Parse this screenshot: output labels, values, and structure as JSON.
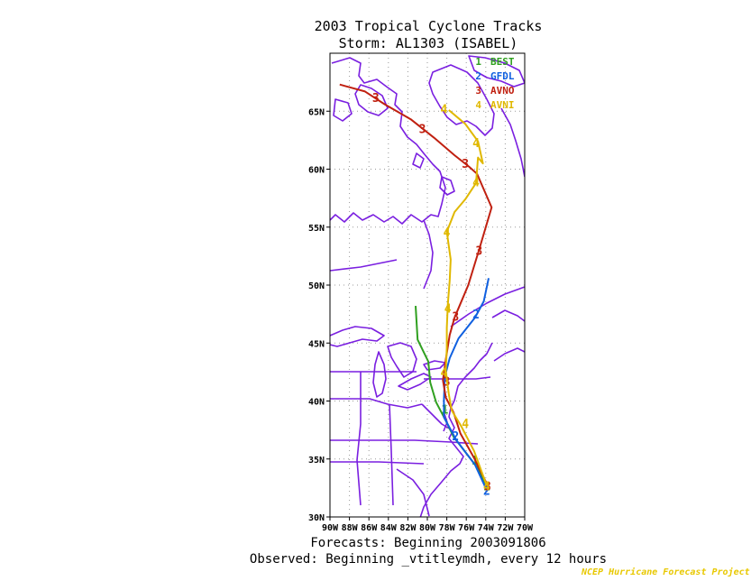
{
  "header": {
    "title_line1": "2003 Tropical Cyclone Tracks",
    "title_line2": "Storm: AL1303 (ISABEL)"
  },
  "footer": {
    "forecasts": "Forecasts: Beginning 2003091806",
    "observed": "Observed: Beginning _vtitleymdh, every 12 hours",
    "credit": "NCEP Hurricane Forecast Project"
  },
  "colors": {
    "map": "#7a1fe0",
    "grid": "#999999",
    "BEST": "#30a020",
    "GFDL": "#1060e0",
    "AVNO": "#c02010",
    "AVNI": "#e0b800"
  },
  "chart_data": {
    "type": "line",
    "title": "2003 Tropical Cyclone Tracks",
    "subtitle": "Storm: AL1303 (ISABEL)",
    "xlim": [
      -90,
      -70
    ],
    "ylim": [
      30,
      70
    ],
    "x_ticks": [
      -90,
      -88,
      -86,
      -84,
      -82,
      -80,
      -78,
      -76,
      -74,
      -72,
      -70
    ],
    "x_tick_labels": [
      "90W",
      "88W",
      "86W",
      "84W",
      "82W",
      "80W",
      "78W",
      "76W",
      "74W",
      "72W",
      "70W"
    ],
    "y_ticks": [
      30,
      35,
      40,
      45,
      50,
      55,
      60,
      65
    ],
    "y_tick_labels": [
      "30N",
      "35N",
      "40N",
      "45N",
      "50N",
      "55N",
      "60N",
      "65N"
    ],
    "grid": true,
    "legend_position": "top-right",
    "legend": [
      {
        "num": "1",
        "name": "BEST"
      },
      {
        "num": "2",
        "name": "GFDL"
      },
      {
        "num": "3",
        "name": "AVNO"
      },
      {
        "num": "4",
        "name": "AVNI"
      }
    ],
    "series": [
      {
        "name": "BEST",
        "num": "1",
        "points": [
          [
            -73.9,
            32.7
          ],
          [
            -74.9,
            34.3
          ],
          [
            -76.1,
            35.6
          ],
          [
            -77.3,
            36.9
          ],
          [
            -78.1,
            38.3
          ],
          [
            -79.1,
            39.9
          ],
          [
            -79.7,
            41.6
          ],
          [
            -79.9,
            43.4
          ],
          [
            -81.0,
            45.3
          ],
          [
            -81.2,
            48.2
          ]
        ],
        "markers": [
          [
            -73.9,
            32.7
          ],
          [
            -75.1,
            34.9
          ],
          [
            -78.2,
            39.3
          ]
        ]
      },
      {
        "name": "GFDL",
        "num": "2",
        "points": [
          [
            -73.9,
            32.3
          ],
          [
            -75.1,
            34.5
          ],
          [
            -77.0,
            36.6
          ],
          [
            -78.3,
            38.6
          ],
          [
            -78.3,
            40.1
          ],
          [
            -78.2,
            42.1
          ],
          [
            -77.7,
            43.7
          ],
          [
            -76.8,
            45.4
          ],
          [
            -75.1,
            47.2
          ],
          [
            -74.2,
            48.6
          ],
          [
            -73.7,
            50.6
          ]
        ],
        "markers": [
          [
            -73.9,
            32.3
          ],
          [
            -77.1,
            37.0
          ],
          [
            -75.0,
            47.5
          ]
        ]
      },
      {
        "name": "AVNO",
        "num": "3",
        "points": [
          [
            -73.8,
            32.7
          ],
          [
            -75.2,
            35.1
          ],
          [
            -76.6,
            37.2
          ],
          [
            -77.3,
            39.0
          ],
          [
            -78.1,
            40.3
          ],
          [
            -78.4,
            41.8
          ],
          [
            -78.1,
            43.6
          ],
          [
            -77.7,
            45.7
          ],
          [
            -77.2,
            47.2
          ],
          [
            -75.8,
            50.0
          ],
          [
            -74.7,
            53.0
          ],
          [
            -73.4,
            56.7
          ],
          [
            -74.9,
            59.6
          ],
          [
            -75.7,
            60.2
          ],
          [
            -77.2,
            61.2
          ],
          [
            -79.3,
            62.7
          ],
          [
            -81.7,
            64.3
          ],
          [
            -84.4,
            65.6
          ],
          [
            -86.4,
            66.7
          ],
          [
            -89.0,
            67.3
          ]
        ],
        "markers": [
          [
            -73.8,
            32.7
          ],
          [
            -78.0,
            41.7
          ],
          [
            -77.1,
            47.3
          ],
          [
            -74.7,
            53.0
          ],
          [
            -76.1,
            60.5
          ],
          [
            -80.5,
            63.5
          ],
          [
            -85.3,
            66.2
          ]
        ]
      },
      {
        "name": "AVNI",
        "num": "4",
        "points": [
          [
            -73.9,
            32.7
          ],
          [
            -75.2,
            35.7
          ],
          [
            -76.5,
            37.8
          ],
          [
            -77.5,
            39.2
          ],
          [
            -77.8,
            40.6
          ],
          [
            -78.1,
            42.6
          ],
          [
            -78.0,
            44.6
          ],
          [
            -78.0,
            46.3
          ],
          [
            -77.9,
            48.3
          ],
          [
            -77.7,
            50.4
          ],
          [
            -77.6,
            52.2
          ],
          [
            -78.0,
            54.6
          ],
          [
            -77.2,
            56.3
          ],
          [
            -76.1,
            57.4
          ],
          [
            -75.0,
            58.8
          ],
          [
            -74.8,
            61.0
          ],
          [
            -74.3,
            60.5
          ],
          [
            -74.8,
            62.4
          ],
          [
            -76.1,
            63.9
          ],
          [
            -77.8,
            65.1
          ]
        ],
        "markers": [
          [
            -73.9,
            32.7
          ],
          [
            -76.1,
            38.1
          ],
          [
            -78.3,
            42.5
          ],
          [
            -77.9,
            48.0
          ],
          [
            -78.0,
            54.6
          ],
          [
            -75.0,
            58.9
          ],
          [
            -75.0,
            62.3
          ],
          [
            -78.3,
            65.2
          ]
        ]
      }
    ]
  }
}
